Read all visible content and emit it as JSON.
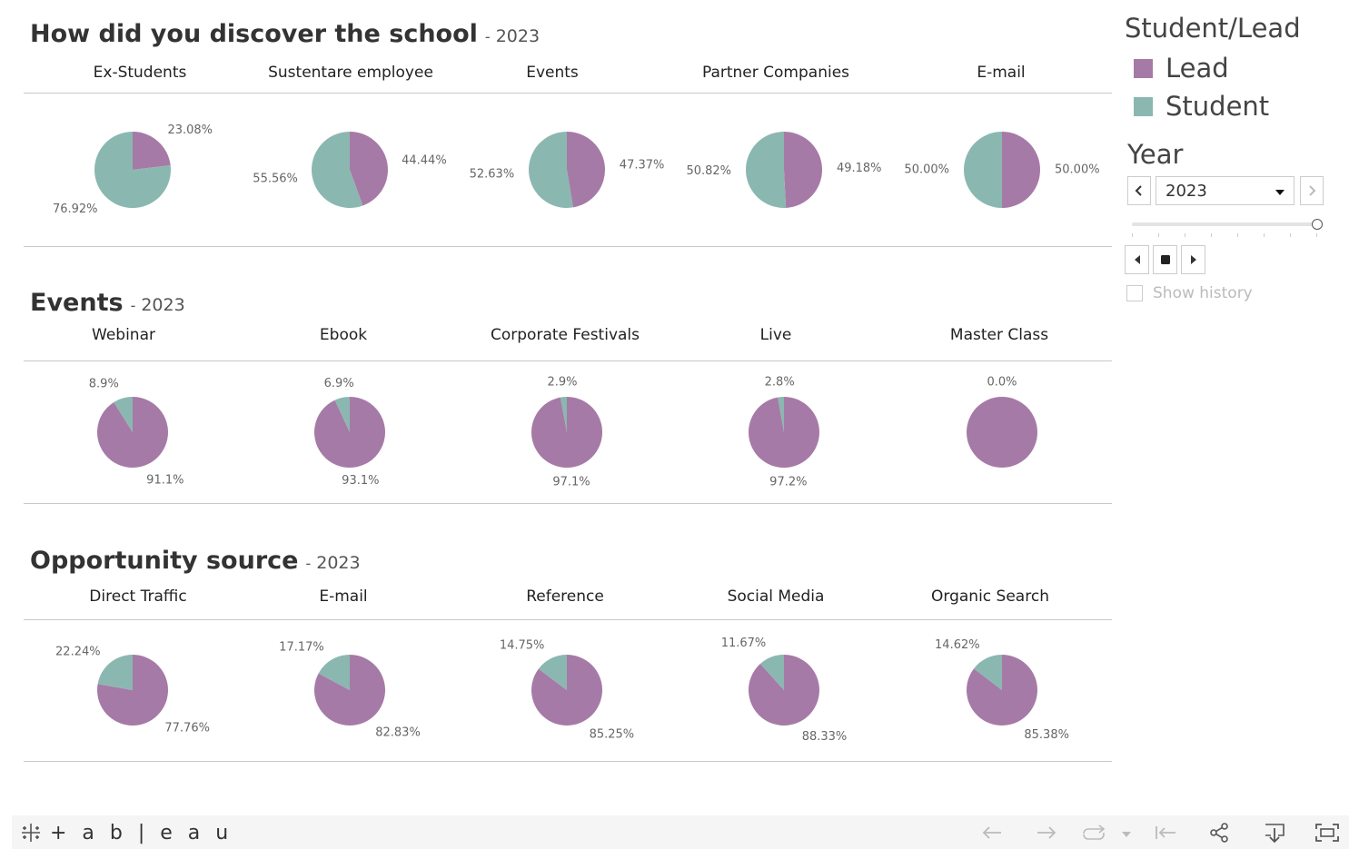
{
  "colors": {
    "lead": "#a67aa6",
    "student": "#8bb7b1"
  },
  "legend": {
    "title": "Student/Lead",
    "items": [
      {
        "label": "Lead",
        "color": "#a67aa6"
      },
      {
        "label": "Student",
        "color": "#8bb7b1"
      }
    ]
  },
  "year_filter": {
    "title": "Year",
    "selected": "2023",
    "show_history_label": "Show history"
  },
  "footer": {
    "logo_text": "+ a b | e a u"
  },
  "sections": [
    {
      "title": "How did you discover the school",
      "dash": "-",
      "year": "2023"
    },
    {
      "title": "Events",
      "dash": "-",
      "year": "2023"
    },
    {
      "title": "Opportunity source",
      "dash": "-",
      "year": "2023"
    }
  ],
  "chart_data": [
    {
      "type": "pie",
      "title": "How did you discover the school",
      "year": "2023",
      "categories": [
        "Ex-Students",
        "Sustentare employee",
        "Events",
        "Partner Companies",
        "E-mail"
      ],
      "series": [
        {
          "name": "Lead",
          "values": [
            23.08,
            44.44,
            47.37,
            49.18,
            50.0
          ]
        },
        {
          "name": "Student",
          "values": [
            76.92,
            55.56,
            52.63,
            50.82,
            50.0
          ]
        }
      ],
      "labels": [
        {
          "lead": "23.08%",
          "student": "76.92%"
        },
        {
          "lead": "44.44%",
          "student": "55.56%"
        },
        {
          "lead": "47.37%",
          "student": "52.63%"
        },
        {
          "lead": "49.18%",
          "student": "50.82%"
        },
        {
          "lead": "50.00%",
          "student": "50.00%"
        }
      ]
    },
    {
      "type": "pie",
      "title": "Events",
      "year": "2023",
      "categories": [
        "Webinar",
        "Ebook",
        "Corporate Festivals",
        "Live",
        "Master Class"
      ],
      "series": [
        {
          "name": "Lead",
          "values": [
            91.1,
            93.1,
            97.1,
            97.2,
            100.0
          ]
        },
        {
          "name": "Student",
          "values": [
            8.9,
            6.9,
            2.9,
            2.8,
            0.0
          ]
        }
      ],
      "labels": [
        {
          "lead": "91.1%",
          "student": "8.9%"
        },
        {
          "lead": "93.1%",
          "student": "6.9%"
        },
        {
          "lead": "97.1%",
          "student": "2.9%"
        },
        {
          "lead": "97.2%",
          "student": "2.8%"
        },
        {
          "lead": "",
          "student": "0.0%"
        }
      ]
    },
    {
      "type": "pie",
      "title": "Opportunity source",
      "year": "2023",
      "categories": [
        "Direct Traffic",
        "E-mail",
        "Reference",
        "Social Media",
        "Organic Search"
      ],
      "series": [
        {
          "name": "Lead",
          "values": [
            77.76,
            82.83,
            85.25,
            88.33,
            85.38
          ]
        },
        {
          "name": "Student",
          "values": [
            22.24,
            17.17,
            14.75,
            11.67,
            14.62
          ]
        }
      ],
      "labels": [
        {
          "lead": "77.76%",
          "student": "22.24%"
        },
        {
          "lead": "82.83%",
          "student": "17.17%"
        },
        {
          "lead": "85.25%",
          "student": "14.75%"
        },
        {
          "lead": "88.33%",
          "student": "11.67%"
        },
        {
          "lead": "85.38%",
          "student": "14.62%"
        }
      ]
    }
  ]
}
